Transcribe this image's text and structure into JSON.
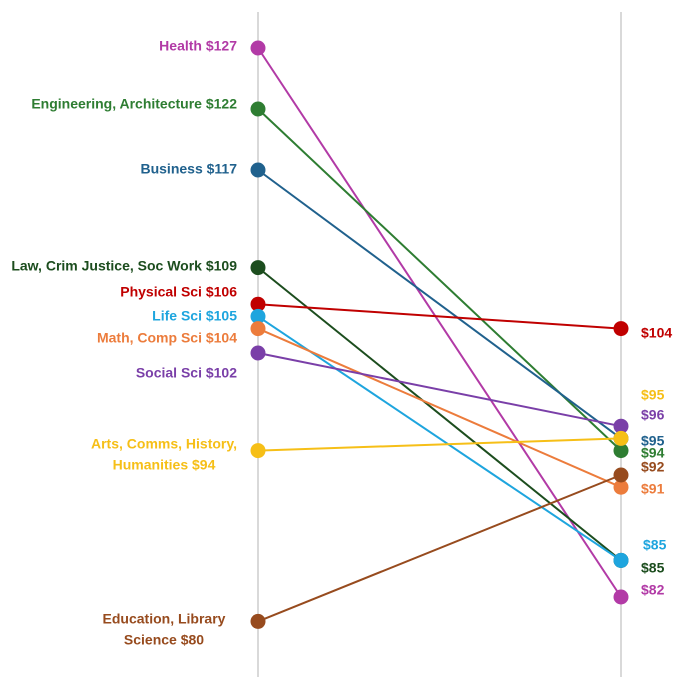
{
  "chart_data": {
    "type": "line",
    "title": "",
    "x": [
      "Left",
      "Right"
    ],
    "ylim": [
      78,
      130
    ],
    "grid": false,
    "series": [
      {
        "name": "Health",
        "left_label": [
          "Health  $127"
        ],
        "right_label": "$82",
        "values": [
          127,
          82
        ],
        "color": "#b23aa6"
      },
      {
        "name": "Engineering, Architecture",
        "left_label": [
          "Engineering, Architecture  $122"
        ],
        "right_label": "$94",
        "values": [
          122,
          94
        ],
        "color": "#2e7d32"
      },
      {
        "name": "Business",
        "left_label": [
          "Business $117"
        ],
        "right_label": "$95",
        "values": [
          117,
          95
        ],
        "color": "#20618d"
      },
      {
        "name": "Law, Crim Justice, Soc Work",
        "left_label": [
          "Law, Crim Justice, Soc Work  $109"
        ],
        "right_label": "$85",
        "values": [
          109,
          85
        ],
        "color": "#1c4d1e"
      },
      {
        "name": "Physical Sci",
        "left_label": [
          "Physical Sci $106"
        ],
        "right_label": "$104",
        "values": [
          106,
          104
        ],
        "color": "#c00000"
      },
      {
        "name": "Life Sci",
        "left_label": [
          "Life Sci $105"
        ],
        "right_label": "$85",
        "values": [
          105,
          85
        ],
        "color": "#1ea5de"
      },
      {
        "name": "Math, Comp Sci",
        "left_label": [
          "Math, Comp Sci $104"
        ],
        "right_label": "$91",
        "values": [
          104,
          91
        ],
        "color": "#ec7c3c"
      },
      {
        "name": "Social Sci",
        "left_label": [
          "Social Sci $102"
        ],
        "right_label": "$96",
        "values": [
          102,
          96
        ],
        "color": "#7a3fa8"
      },
      {
        "name": "Arts, Comms, History, Humanities",
        "left_label": [
          "Arts, Comms, History,",
          "Humanities  $94"
        ],
        "right_label": "$95",
        "values": [
          94,
          95
        ],
        "color": "#f6bf17"
      },
      {
        "name": "Education, Library Science",
        "left_label": [
          "Education, Library",
          "Science  $80"
        ],
        "right_label": "$92",
        "values": [
          80,
          92
        ],
        "color": "#974b1e"
      }
    ]
  }
}
